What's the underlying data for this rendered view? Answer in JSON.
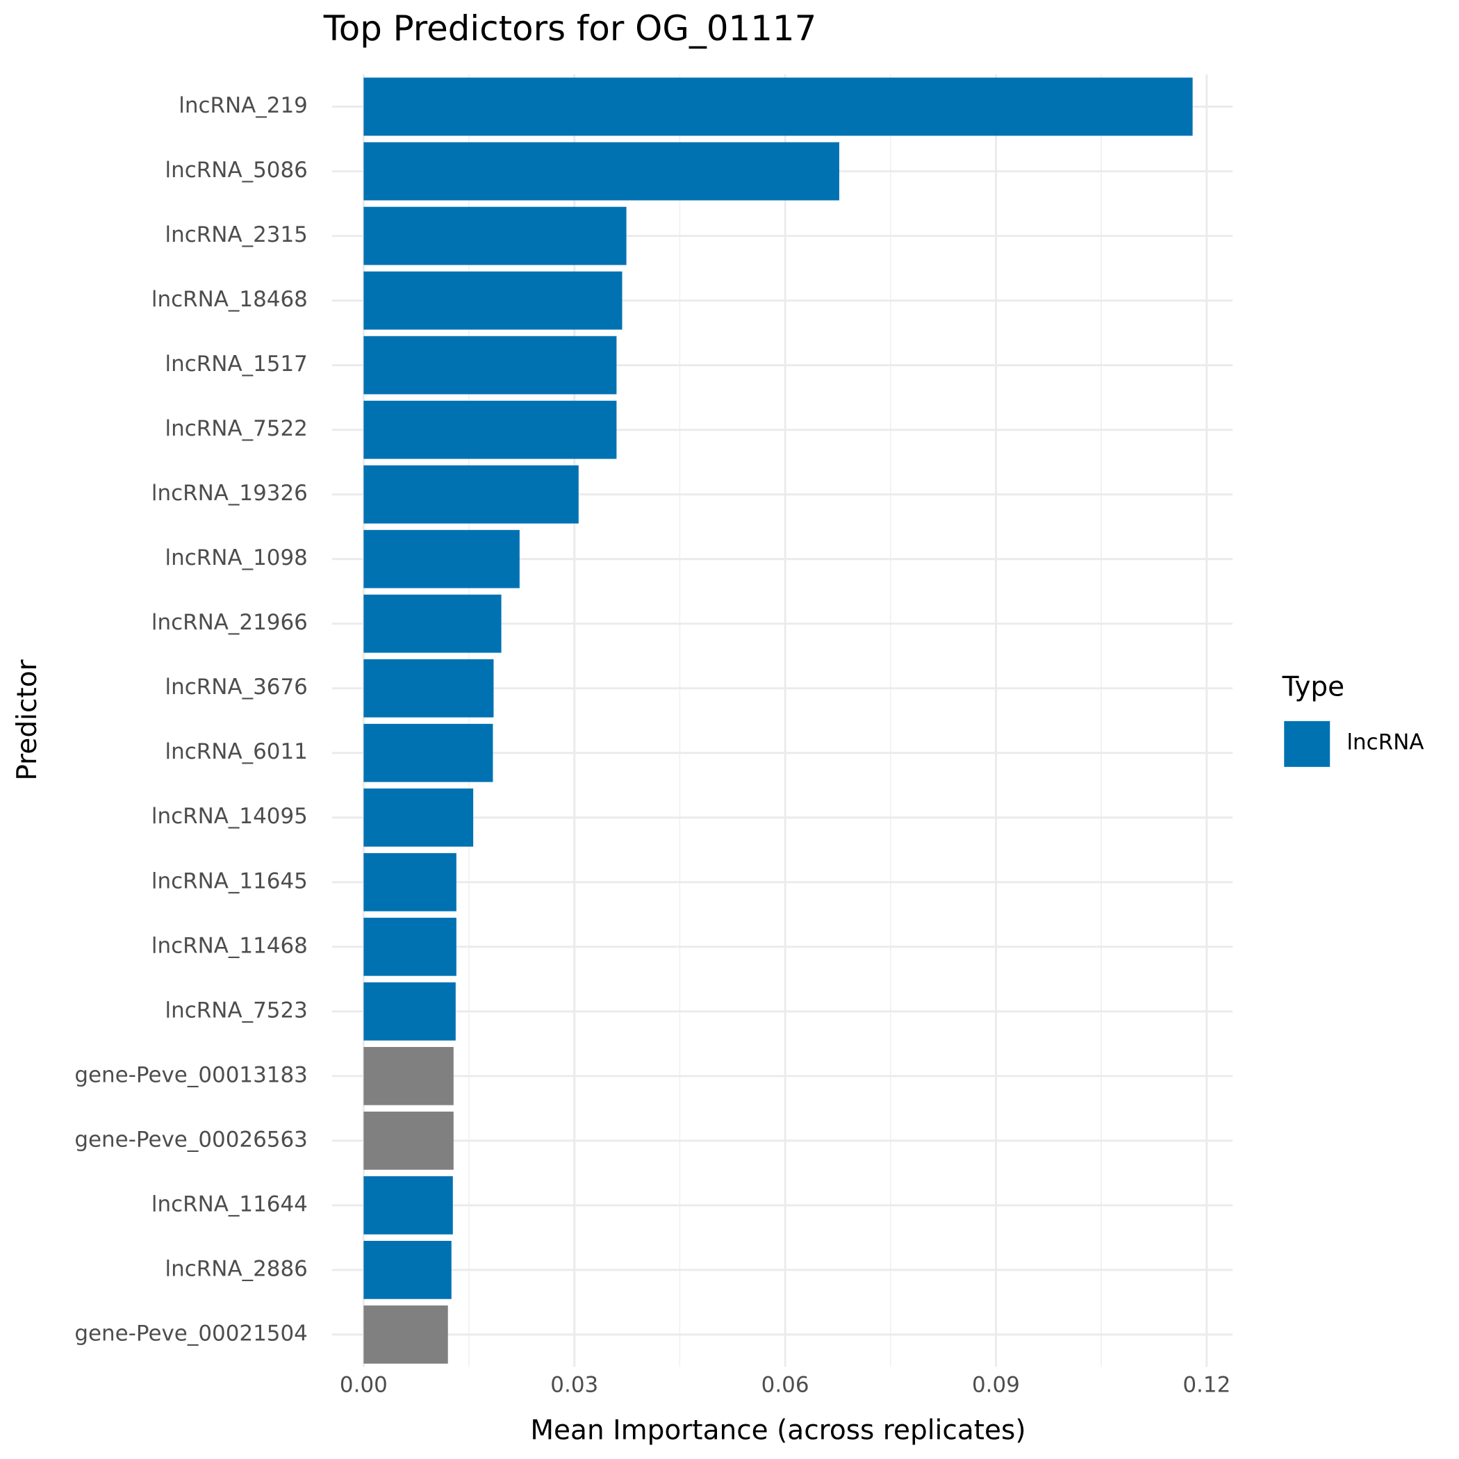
{
  "chart_data": {
    "type": "hbar",
    "title": "Top Predictors for OG_01117",
    "x_label": "Mean Importance (across replicates)",
    "y_label": "Predictor",
    "categories": [
      "lncRNA_219",
      "lncRNA_5086",
      "lncRNA_2315",
      "lncRNA_18468",
      "lncRNA_1517",
      "lncRNA_7522",
      "lncRNA_19326",
      "lncRNA_1098",
      "lncRNA_21966",
      "lncRNA_3676",
      "lncRNA_6011",
      "lncRNA_14095",
      "lncRNA_11645",
      "lncRNA_11468",
      "lncRNA_7523",
      "gene-Peve_00013183",
      "gene-Peve_00026563",
      "lncRNA_11644",
      "lncRNA_2886",
      "gene-Peve_00021504"
    ],
    "values": [
      0.118,
      0.0677,
      0.0374,
      0.0368,
      0.036,
      0.036,
      0.0306,
      0.0222,
      0.0196,
      0.0185,
      0.0184,
      0.0156,
      0.0132,
      0.0132,
      0.0131,
      0.0128,
      0.0128,
      0.0127,
      0.0125,
      0.012
    ],
    "colors": [
      "#0072b2",
      "#0072b2",
      "#0072b2",
      "#0072b2",
      "#0072b2",
      "#0072b2",
      "#0072b2",
      "#0072b2",
      "#0072b2",
      "#0072b2",
      "#0072b2",
      "#0072b2",
      "#0072b2",
      "#0072b2",
      "#0072b2",
      "#808080",
      "#808080",
      "#0072b2",
      "#0072b2",
      "#808080"
    ],
    "xlim": [
      -0.0045,
      0.1237
    ],
    "xticks": [
      {
        "value": 0,
        "label": "0.00"
      },
      0.03,
      0.06,
      0.09,
      0.12
    ],
    "xticks_minor": [
      0.015,
      0.045,
      0.075,
      0.105
    ],
    "grid": true,
    "legend": {
      "title": "Type",
      "position": "right",
      "entries": [
        {
          "name": "lncRNA",
          "color": "#0072b2"
        }
      ]
    }
  }
}
